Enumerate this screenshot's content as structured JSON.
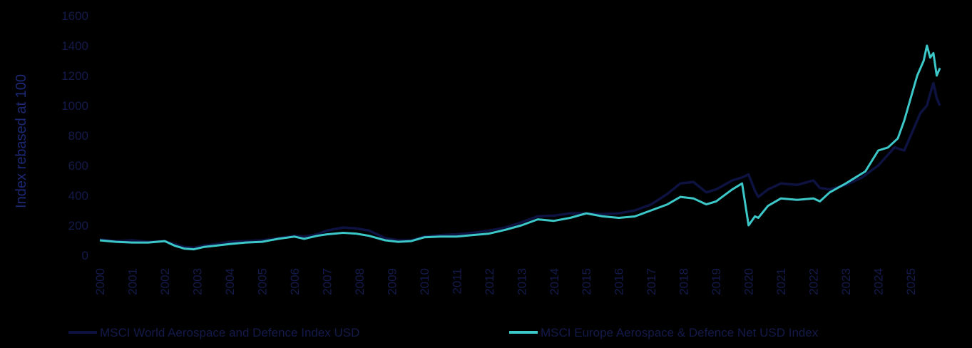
{
  "chart_data": {
    "type": "line",
    "ylabel": "Index rebased at 100",
    "xlabel": "",
    "ylim": [
      0,
      1600
    ],
    "yticks": [
      "0",
      "200",
      "400",
      "600",
      "800",
      "1000",
      "1200",
      "1400",
      "1600"
    ],
    "xlim": [
      2000,
      2025.9
    ],
    "xticks": [
      "2000",
      "2001",
      "2002",
      "2003",
      "2004",
      "2005",
      "2006",
      "2007",
      "2008",
      "2009",
      "2010",
      "2011",
      "2012",
      "2013",
      "2014",
      "2015",
      "2016",
      "2017",
      "2018",
      "2019",
      "2020",
      "2021",
      "2022",
      "2023",
      "2024",
      "2025"
    ],
    "grid": false,
    "legend_position": "bottom",
    "series": [
      {
        "name": "MSCI World Aerospace and Defence Index USD",
        "color": "#0e1240",
        "x": [
          2000.0,
          2000.5,
          2001.0,
          2001.5,
          2002.0,
          2002.3,
          2002.6,
          2002.9,
          2003.2,
          2003.6,
          2004.0,
          2004.5,
          2005.0,
          2005.5,
          2006.0,
          2006.3,
          2006.7,
          2007.0,
          2007.5,
          2007.9,
          2008.3,
          2008.8,
          2009.2,
          2009.6,
          2010.0,
          2010.5,
          2011.0,
          2011.5,
          2012.0,
          2012.5,
          2013.0,
          2013.5,
          2014.0,
          2014.5,
          2015.0,
          2015.5,
          2016.0,
          2016.5,
          2017.0,
          2017.5,
          2017.9,
          2018.3,
          2018.7,
          2019.0,
          2019.5,
          2019.8,
          2020.0,
          2020.2,
          2020.3,
          2020.6,
          2021.0,
          2021.5,
          2022.0,
          2022.2,
          2022.5,
          2023.0,
          2023.5,
          2024.0,
          2024.5,
          2024.8,
          2025.0,
          2025.3,
          2025.5,
          2025.6,
          2025.7,
          2025.8,
          2025.9
        ],
        "y": [
          105,
          95,
          100,
          90,
          95,
          75,
          55,
          50,
          65,
          75,
          90,
          95,
          100,
          115,
          130,
          125,
          140,
          165,
          185,
          180,
          165,
          115,
          100,
          100,
          125,
          135,
          140,
          150,
          165,
          185,
          220,
          260,
          265,
          280,
          280,
          275,
          280,
          300,
          340,
          410,
          480,
          490,
          420,
          440,
          500,
          520,
          540,
          430,
          390,
          440,
          480,
          470,
          500,
          450,
          440,
          470,
          520,
          600,
          720,
          700,
          800,
          950,
          1000,
          1080,
          1150,
          1050,
          1000
        ]
      },
      {
        "name": "MSCI Europe Aerospace & Defence Net USD Index",
        "color": "#3cc8c8",
        "x": [
          2000.0,
          2000.5,
          2001.0,
          2001.5,
          2002.0,
          2002.3,
          2002.6,
          2002.9,
          2003.2,
          2003.6,
          2004.0,
          2004.5,
          2005.0,
          2005.5,
          2006.0,
          2006.3,
          2006.7,
          2007.0,
          2007.5,
          2007.9,
          2008.3,
          2008.8,
          2009.2,
          2009.6,
          2010.0,
          2010.5,
          2011.0,
          2011.5,
          2012.0,
          2012.5,
          2013.0,
          2013.5,
          2014.0,
          2014.5,
          2015.0,
          2015.5,
          2016.0,
          2016.5,
          2017.0,
          2017.5,
          2017.9,
          2018.3,
          2018.7,
          2019.0,
          2019.5,
          2019.8,
          2020.0,
          2020.2,
          2020.3,
          2020.6,
          2021.0,
          2021.5,
          2022.0,
          2022.2,
          2022.5,
          2023.0,
          2023.3,
          2023.6,
          2024.0,
          2024.3,
          2024.6,
          2024.8,
          2025.0,
          2025.2,
          2025.4,
          2025.5,
          2025.6,
          2025.7,
          2025.8,
          2025.9
        ],
        "y": [
          100,
          90,
          85,
          85,
          95,
          65,
          45,
          40,
          55,
          65,
          75,
          85,
          90,
          110,
          125,
          110,
          130,
          140,
          150,
          145,
          130,
          100,
          90,
          95,
          120,
          125,
          125,
          135,
          145,
          170,
          200,
          240,
          230,
          250,
          280,
          260,
          250,
          260,
          300,
          340,
          390,
          380,
          340,
          360,
          440,
          480,
          200,
          260,
          250,
          330,
          380,
          370,
          380,
          360,
          420,
          480,
          520,
          560,
          700,
          720,
          780,
          900,
          1050,
          1200,
          1300,
          1400,
          1320,
          1350,
          1200,
          1250
        ]
      }
    ]
  }
}
